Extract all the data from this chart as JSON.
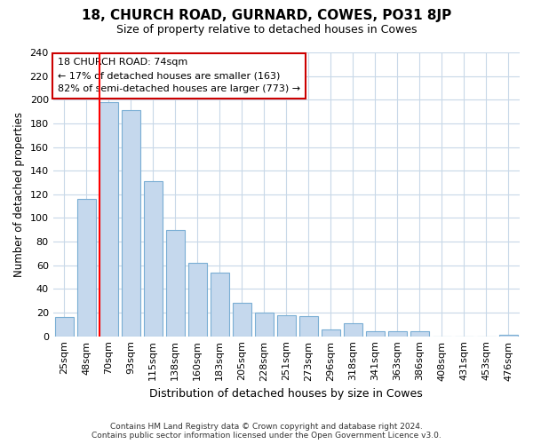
{
  "title": "18, CHURCH ROAD, GURNARD, COWES, PO31 8JP",
  "subtitle": "Size of property relative to detached houses in Cowes",
  "bar_labels": [
    "25sqm",
    "48sqm",
    "70sqm",
    "93sqm",
    "115sqm",
    "138sqm",
    "160sqm",
    "183sqm",
    "205sqm",
    "228sqm",
    "251sqm",
    "273sqm",
    "296sqm",
    "318sqm",
    "341sqm",
    "363sqm",
    "386sqm",
    "408sqm",
    "431sqm",
    "453sqm",
    "476sqm"
  ],
  "bar_values": [
    16,
    116,
    198,
    191,
    131,
    90,
    62,
    54,
    28,
    20,
    18,
    17,
    6,
    11,
    4,
    4,
    4,
    0,
    0,
    0,
    1
  ],
  "bar_color": "#c5d8ed",
  "bar_edge_color": "#7aaed4",
  "ylabel": "Number of detached properties",
  "xlabel": "Distribution of detached houses by size in Cowes",
  "ylim": [
    0,
    240
  ],
  "yticks": [
    0,
    20,
    40,
    60,
    80,
    100,
    120,
    140,
    160,
    180,
    200,
    220,
    240
  ],
  "property_label": "18 CHURCH ROAD: 74sqm",
  "annotation_line1": "← 17% of detached houses are smaller (163)",
  "annotation_line2": "82% of semi-detached houses are larger (773) →",
  "red_line_bar_index": 2,
  "annotation_box_color": "#ffffff",
  "annotation_box_edge": "#cc0000",
  "footer_line1": "Contains HM Land Registry data © Crown copyright and database right 2024.",
  "footer_line2": "Contains public sector information licensed under the Open Government Licence v3.0.",
  "grid_color": "#c8d8e8",
  "background_color": "#ffffff",
  "title_fontsize": 11,
  "subtitle_fontsize": 9
}
